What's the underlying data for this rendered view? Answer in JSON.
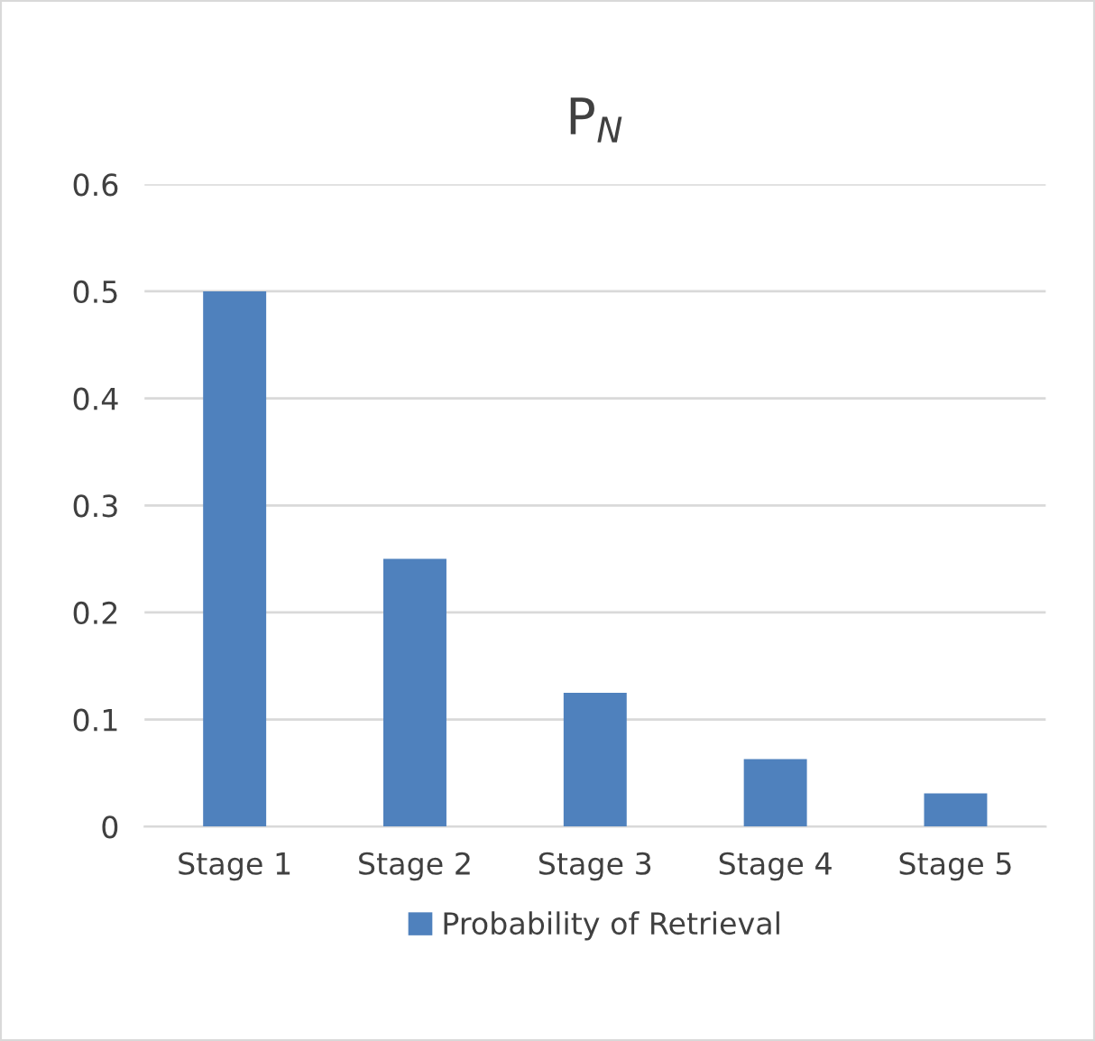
{
  "chart_data": {
    "type": "bar",
    "title": "P$_{N}$",
    "categories": [
      "Stage 1",
      "Stage 2",
      "Stage 3",
      "Stage 4",
      "Stage 5"
    ],
    "series": [
      {
        "name": "Probability of Retrieval",
        "color": "#4f81bd",
        "values": [
          0.5,
          0.25,
          0.125,
          0.063,
          0.031
        ]
      }
    ],
    "ylim": [
      0,
      0.6
    ],
    "yticks": [
      {
        "value": 0,
        "label": "0"
      },
      0.1,
      0.2,
      0.3,
      0.4,
      0.5,
      0.6
    ],
    "grid": "y",
    "legend": "bottom"
  }
}
